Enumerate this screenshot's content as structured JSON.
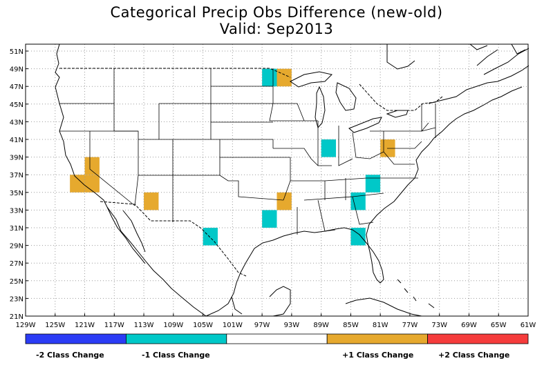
{
  "title": "Categorical Precip Obs Difference (new-old)",
  "subtitle": "Valid: Sep2013",
  "x_ticks": [
    "129W",
    "125W",
    "121W",
    "117W",
    "113W",
    "109W",
    "105W",
    "101W",
    "97W",
    "93W",
    "89W",
    "85W",
    "81W",
    "77W",
    "73W",
    "69W",
    "65W",
    "61W"
  ],
  "y_ticks": [
    "51N",
    "49N",
    "47N",
    "45N",
    "43N",
    "41N",
    "39N",
    "37N",
    "35N",
    "33N",
    "31N",
    "29N",
    "27N",
    "25N",
    "23N",
    "21N"
  ],
  "legend": {
    "colors": [
      "#2b3cf5",
      "#00c8c8",
      "#ffffff",
      "#e6a92e",
      "#f53c3c"
    ],
    "labels": [
      {
        "text": "-2 Class Change"
      },
      {
        "text": "-1 Class Change"
      },
      {
        "text": "+1 Class Change"
      },
      {
        "text": "+2 Class Change"
      }
    ]
  },
  "chart_data": {
    "type": "heatmap",
    "lon_range": [
      -129,
      -61
    ],
    "lat_range": [
      21,
      52
    ],
    "cell_size_deg": 2,
    "grid": true,
    "cells": [
      {
        "lon_min": -97,
        "lat_min": 47,
        "value": -1
      },
      {
        "lon_min": -95,
        "lat_min": 47,
        "value": 1
      },
      {
        "lon_min": -89,
        "lat_min": 39,
        "value": -1
      },
      {
        "lon_min": -81,
        "lat_min": 39,
        "value": 1
      },
      {
        "lon_min": -121,
        "lat_min": 35,
        "value": 1
      },
      {
        "lon_min": -123,
        "lat_min": 35,
        "value": 1
      },
      {
        "lon_min": -121,
        "lat_min": 37,
        "value": 1
      },
      {
        "lon_min": -113,
        "lat_min": 33,
        "value": 1
      },
      {
        "lon_min": -83,
        "lat_min": 35,
        "value": -1
      },
      {
        "lon_min": -85,
        "lat_min": 33,
        "value": -1
      },
      {
        "lon_min": -95,
        "lat_min": 33,
        "value": 1
      },
      {
        "lon_min": -97,
        "lat_min": 31,
        "value": -1
      },
      {
        "lon_min": -105,
        "lat_min": 29,
        "value": -1
      },
      {
        "lon_min": -85,
        "lat_min": 29,
        "value": -1
      }
    ]
  }
}
